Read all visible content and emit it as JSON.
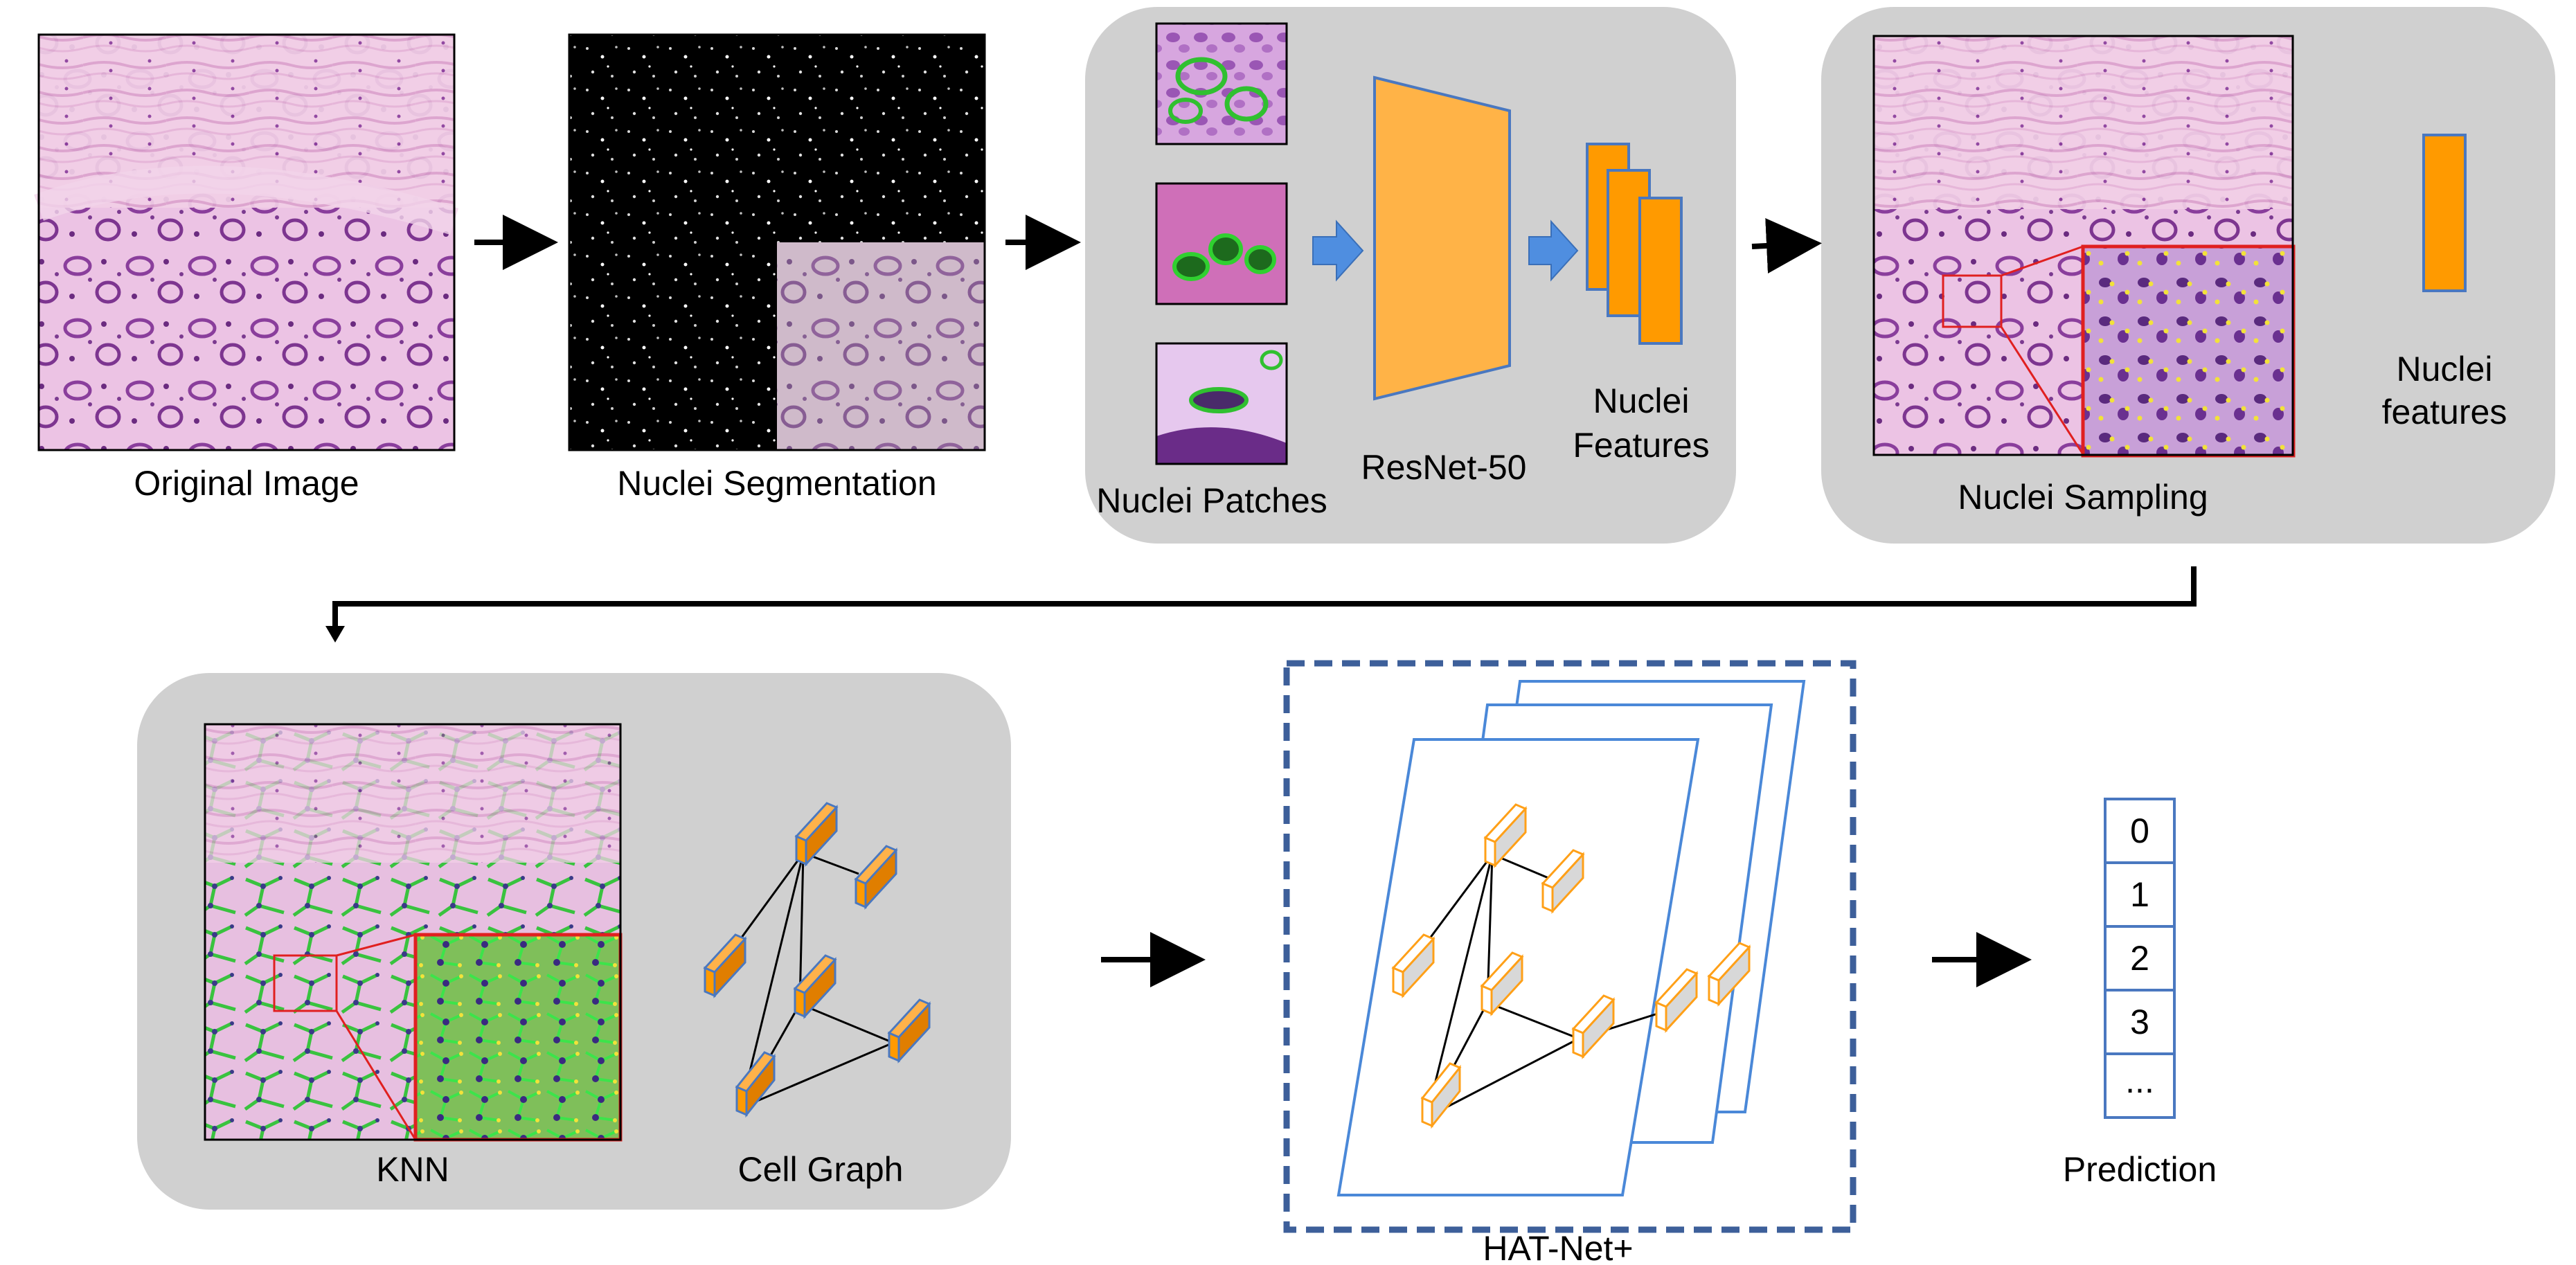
{
  "stages": {
    "original_image": "Original Image",
    "nuclei_segmentation": "Nuclei Segmentation",
    "nuclei_patches": "Nuclei Patches",
    "resnet": "ResNet-50",
    "nuclei_features_line1": "Nuclei",
    "nuclei_features_line2": "Features",
    "nuclei_sampling": "Nuclei Sampling",
    "sampled_features_line1": "Nuclei",
    "sampled_features_line2": "features",
    "knn": "KNN",
    "cell_graph": "Cell Graph",
    "hatnet": "HAT-Net+",
    "prediction": "Prediction"
  },
  "prediction_cells": [
    "0",
    "1",
    "2",
    "3",
    "..."
  ],
  "colors": {
    "panel": "#d0d0d0",
    "feature_orange": "#ff9a00",
    "resnet_orange": "#ffb347",
    "arrow_blue": "#4f8ee0",
    "frame_blue": "#4a78c0",
    "dashed_border": "#3d5f9a",
    "tissue_pink": "#ecc0e4",
    "tissue_purple": "#8a3e9c",
    "nuclei_green": "#33c33a",
    "sample_yellow": "#f2e23a",
    "zoom_red": "#e02020"
  }
}
